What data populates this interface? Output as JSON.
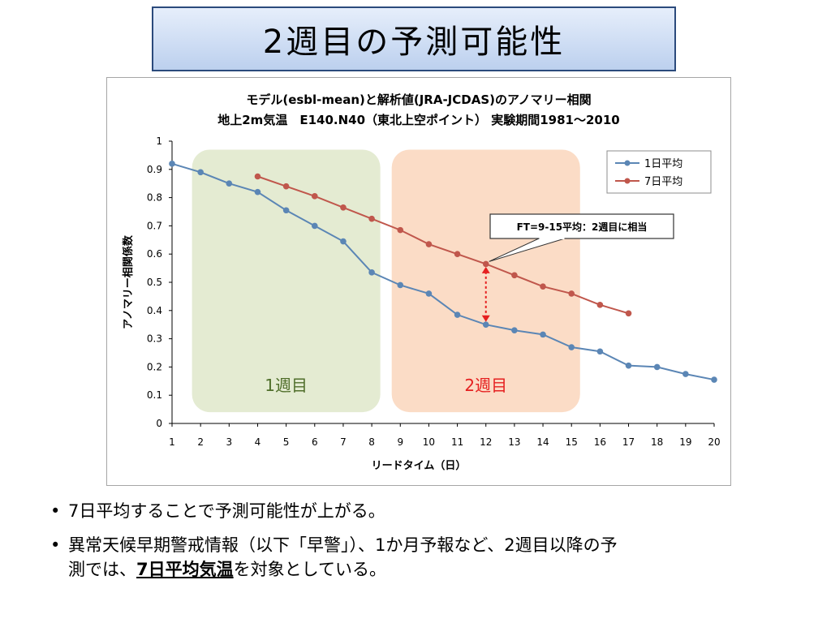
{
  "slide": {
    "title": "2週目の予測可能性",
    "bullets": [
      {
        "text": "7日平均することで予測可能性が上がる。"
      },
      {
        "pre": "異常天候早期警戒情報（以下「早警」）、1か月予報など、2週目以降の予",
        "line2_pre": "測では、",
        "emphasis": "7日平均気温",
        "post": "を対象としている。"
      }
    ]
  },
  "chart_data": {
    "type": "line",
    "title": "モデル(esbl-mean)と解析値(JRA-JCDAS)のアノマリー相関",
    "subtitle": "地上2m気温　E140.N40（東北上空ポイント）  実験期間1981～2010",
    "xlabel": "リードタイム（日）",
    "ylabel": "アノマリー相関係数",
    "x": [
      1,
      2,
      3,
      4,
      5,
      6,
      7,
      8,
      9,
      10,
      11,
      12,
      13,
      14,
      15,
      16,
      17,
      18,
      19,
      20
    ],
    "xlim": [
      1,
      20
    ],
    "ylim": [
      0,
      1
    ],
    "yticks": [
      "0",
      "0.1",
      "0.2",
      "0.3",
      "0.4",
      "0.5",
      "0.6",
      "0.7",
      "0.8",
      "0.9",
      "1"
    ],
    "grid": false,
    "legend_position": "top-right",
    "series": [
      {
        "name": "1日平均",
        "color": "#5b86b5",
        "x": [
          1,
          2,
          3,
          4,
          5,
          6,
          7,
          8,
          9,
          10,
          11,
          12,
          13,
          14,
          15,
          16,
          17,
          18,
          19,
          20
        ],
        "values": [
          0.92,
          0.89,
          0.85,
          0.82,
          0.755,
          0.7,
          0.645,
          0.535,
          0.49,
          0.46,
          0.385,
          0.35,
          0.33,
          0.315,
          0.27,
          0.255,
          0.205,
          0.2,
          0.175,
          0.155
        ]
      },
      {
        "name": "7日平均",
        "color": "#c0574c",
        "x": [
          4,
          5,
          6,
          7,
          8,
          9,
          10,
          11,
          12,
          13,
          14,
          15,
          16,
          17
        ],
        "values": [
          0.875,
          0.84,
          0.805,
          0.765,
          0.725,
          0.685,
          0.635,
          0.6,
          0.565,
          0.525,
          0.485,
          0.46,
          0.42,
          0.39
        ]
      }
    ],
    "regions": [
      {
        "label": "1週目",
        "from": 1.7,
        "to": 8.3,
        "fill": "#e4ebd2",
        "label_color": "#4f6e2a"
      },
      {
        "label": "2週目",
        "from": 8.7,
        "to": 15.3,
        "fill": "#fbdcc6",
        "label_color": "#e52020"
      }
    ],
    "annotation": {
      "text": "FT=9-15平均：2週目に相当",
      "x": 12,
      "arrow_from": 0.555,
      "arrow_to": 0.36,
      "arrow_color": "#e52020"
    }
  }
}
